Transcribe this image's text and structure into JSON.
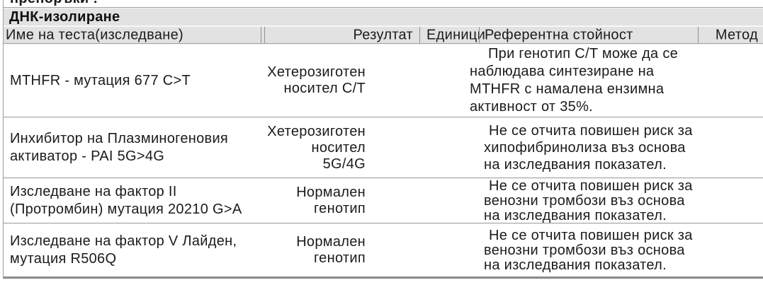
{
  "clipped_top_text": "препоръки !",
  "section": {
    "title": "ДНК-изолиране"
  },
  "columns": {
    "name": "Име на теста(изследване)",
    "result": "Резултат",
    "units": "Единици",
    "reference": "Референтна стойност",
    "method": "Метод"
  },
  "rows": [
    {
      "name": "MTHFR - мутация 677 C>T",
      "result": "Хетерозиготен\nносител C/T",
      "units": "",
      "reference": "При генотип C/T може да се\nнаблюдава синтезиране на\nMTHFR с намалена ензимна\nактивност от 35%.",
      "method": ""
    },
    {
      "name": "Инхибитор на Плазминогеновия\nактиватор - PAI 5G>4G",
      "result": "Хетерозиготен\nносител\n5G/4G",
      "units": "",
      "reference": "Не се отчита повишен риск за\nхипофибринолиза въз основа\nна изследвания показател.",
      "method": ""
    },
    {
      "name": "Изследване на фактор II\n(Протромбин) мутация 20210 G>A",
      "result": "Нормален\nгенотип",
      "units": "",
      "reference": "Не се отчита повишен риск за\nвенозни тромбози въз основа\nна изследвания показател.",
      "method": ""
    },
    {
      "name": "Изследване на фактор V Лайден,\nмутация R506Q",
      "result": "Нормален\nгенотип",
      "units": "",
      "reference": "Не се отчита повишен риск за\nвенозни тромбози въз основа\nна изследвания показател.",
      "method": ""
    }
  ],
  "colors": {
    "header_bg": "#e2e2e2",
    "border_dark": "#8f8f8f",
    "border_light": "#f3f3f3",
    "text": "#1b1b1b"
  }
}
